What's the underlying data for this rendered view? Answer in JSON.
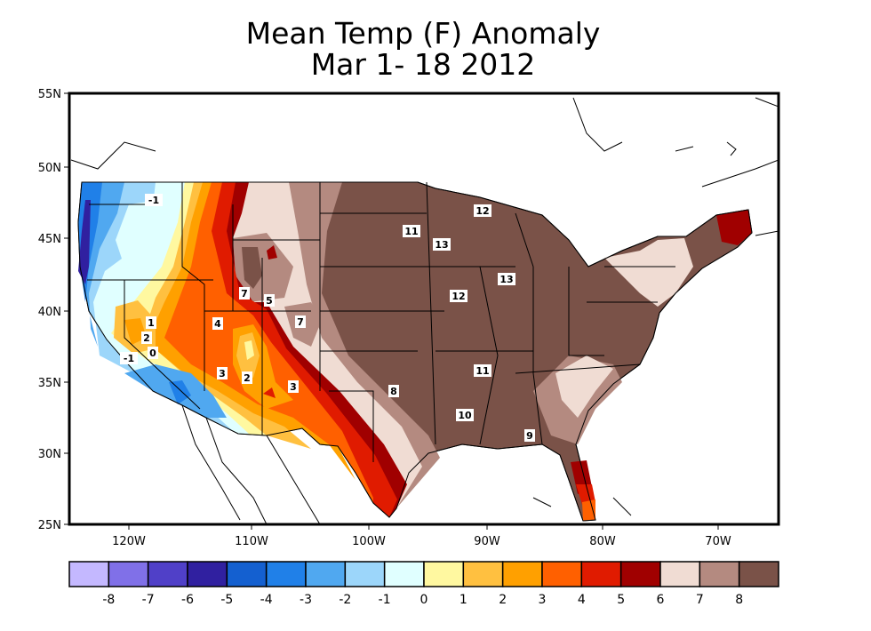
{
  "title": {
    "line1": "Mean Temp (F) Anomaly",
    "line2": "Mar 1- 18 2012"
  },
  "lat_labels": [
    "55N",
    "50N",
    "45N",
    "40N",
    "35N",
    "30N",
    "25N"
  ],
  "lon_labels": [
    "120W",
    "110W",
    "100W",
    "90W",
    "80W",
    "70W"
  ],
  "contour_labels": [
    "-1",
    "1",
    "2",
    "0",
    "-1",
    "7",
    "5",
    "4",
    "7",
    "3",
    "2",
    "3",
    "11",
    "12",
    "13",
    "13",
    "12",
    "11",
    "10",
    "9",
    "8"
  ],
  "colorbar": {
    "colors": [
      "#c4b8ff",
      "#8070e8",
      "#5040c8",
      "#3020a0",
      "#1460d0",
      "#2080e8",
      "#50a8f0",
      "#9cd6fa",
      "#e0ffff",
      "#fff8a0",
      "#ffc040",
      "#ffa000",
      "#ff6000",
      "#e01b00",
      "#a00000",
      "#f0dcd3",
      "#b48a80",
      "#7a5248"
    ],
    "labels": [
      "-8",
      "-7",
      "-6",
      "-5",
      "-4",
      "-3",
      "-2",
      "-1",
      "0",
      "1",
      "2",
      "3",
      "4",
      "5",
      "6",
      "7",
      "8"
    ]
  }
}
